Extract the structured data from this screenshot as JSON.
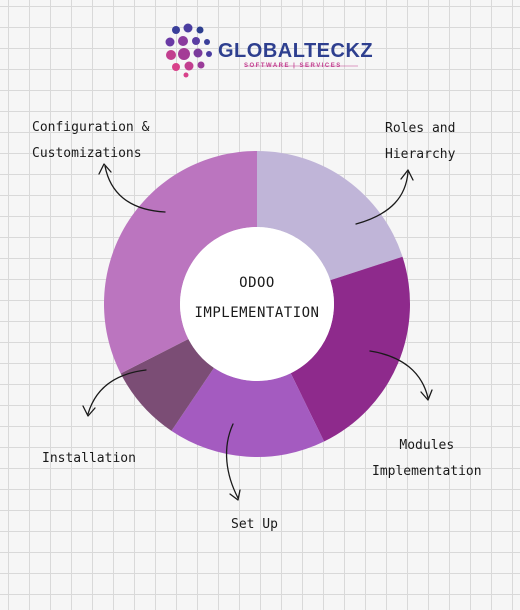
{
  "logo": {
    "name": "GLOBALTECKZ",
    "tagline": "SOFTWARE | SERVICES"
  },
  "center": {
    "line1": "ODOO",
    "line2": "IMPLEMENTATION"
  },
  "segments": [
    {
      "id": "roles",
      "color": "#c0b5d8",
      "start": 0,
      "end": 72,
      "label_lines": [
        "Roles and",
        "Hierarchy"
      ]
    },
    {
      "id": "modules",
      "color": "#8e2a8c",
      "start": 72,
      "end": 154,
      "label_lines": [
        "Modules",
        "Implementation"
      ]
    },
    {
      "id": "setup",
      "color": "#a45bc0",
      "start": 154,
      "end": 214,
      "label_lines": [
        "Set Up"
      ]
    },
    {
      "id": "installation",
      "color": "#7b4d75",
      "start": 214,
      "end": 243,
      "label_lines": [
        "Installation"
      ]
    },
    {
      "id": "configuration",
      "color": "#bb75bf",
      "start": 243,
      "end": 360,
      "label_lines": [
        "Configuration &",
        "Customizations"
      ]
    }
  ]
}
